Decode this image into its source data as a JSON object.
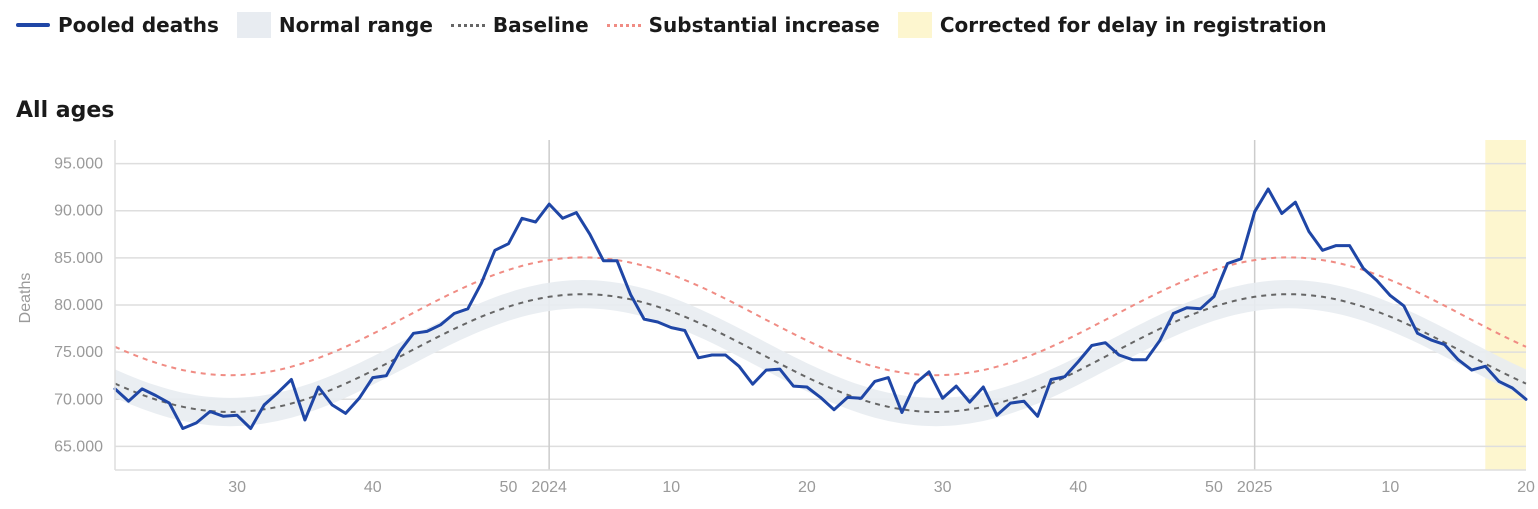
{
  "legend": [
    {
      "label": "Pooled deaths",
      "kind": "line",
      "color": "#1f46a6"
    },
    {
      "label": "Normal range",
      "kind": "box",
      "color": "#e8ecf1"
    },
    {
      "label": "Baseline",
      "kind": "dash",
      "color": "#666666"
    },
    {
      "label": "Substantial increase",
      "kind": "dash",
      "color": "#f08c84"
    },
    {
      "label": "Corrected for delay in registration",
      "kind": "box",
      "color": "#fdf6cf"
    }
  ],
  "colors": {
    "pooled": "#1f46a6",
    "normal_range": "#e8ecf1",
    "baseline": "#666666",
    "substantial": "#f08c84",
    "correction": "#fdf6cf",
    "grid": "#dedede",
    "year_line": "#cccccc"
  },
  "chart_data": {
    "type": "line",
    "title": "All ages",
    "ylabel": "Deaths",
    "ylim": [
      62500,
      97500
    ],
    "yticks": [
      65000,
      70000,
      75000,
      80000,
      85000,
      90000,
      95000
    ],
    "ytick_labels": [
      "65.000",
      "70.000",
      "75.000",
      "80.000",
      "85.000",
      "90.000",
      "95.000"
    ],
    "x_unit": "weeks since 2023 week 21",
    "xlim": [
      0,
      104
    ],
    "xticks": [
      {
        "x": 9,
        "label": "30"
      },
      {
        "x": 19,
        "label": "40"
      },
      {
        "x": 29,
        "label": "50"
      },
      {
        "x": 32,
        "label": "2024"
      },
      {
        "x": 41,
        "label": "10"
      },
      {
        "x": 51,
        "label": "20"
      },
      {
        "x": 61,
        "label": "30"
      },
      {
        "x": 71,
        "label": "40"
      },
      {
        "x": 81,
        "label": "50"
      },
      {
        "x": 84,
        "label": "2025"
      },
      {
        "x": 94,
        "label": "10"
      },
      {
        "x": 104,
        "label": "20"
      }
    ],
    "year_lines": [
      32,
      84
    ],
    "correction_start": 101,
    "baseline": {
      "mean": 74900,
      "amplitude": 6250,
      "peak_week": 34.5,
      "period": 52
    },
    "normal_range_halfwidth": 1500,
    "substantial_offset": 3900,
    "series": [
      {
        "name": "Pooled deaths",
        "values": [
          71100,
          69800,
          71100,
          70400,
          69600,
          66900,
          67500,
          68700,
          68200,
          68300,
          66900,
          69400,
          70700,
          72100,
          67800,
          71300,
          69400,
          68500,
          70100,
          72300,
          72500,
          75100,
          77000,
          77200,
          77900,
          79100,
          79600,
          82300,
          85800,
          86500,
          89200,
          88800,
          90700,
          89200,
          89800,
          87500,
          84700,
          84700,
          81100,
          78500,
          78200,
          77600,
          77300,
          74400,
          74700,
          74700,
          73500,
          71600,
          73100,
          73200,
          71400,
          71300,
          70200,
          68900,
          70200,
          70100,
          71900,
          72300,
          68600,
          71700,
          72900,
          70100,
          71400,
          69700,
          71300,
          68300,
          69600,
          69800,
          68200,
          72100,
          72400,
          74000,
          75700,
          76000,
          74700,
          74200,
          74200,
          76200,
          79100,
          79700,
          79600,
          80900,
          84400,
          84900,
          89900,
          92300,
          89700,
          90900,
          87800,
          85800,
          86300,
          86300,
          83900,
          82600,
          81000,
          79900,
          77000,
          76300,
          75800,
          74200,
          73100,
          73500,
          71900,
          71200,
          70000
        ]
      }
    ]
  }
}
